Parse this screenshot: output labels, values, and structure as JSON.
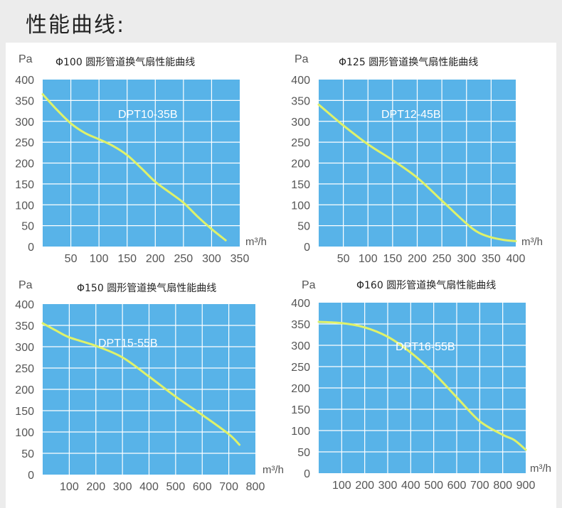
{
  "page": {
    "title": "性能曲线:"
  },
  "colors": {
    "plot_bg": "#58b3e8",
    "curve": "#dff26a",
    "grid": "#ffffff",
    "page_bg": "#ececec"
  },
  "chart_data": [
    {
      "type": "line",
      "title": "Φ100 圆形管道换气扇性能曲线",
      "ylabel": "Pa",
      "xlabel": "m³/h",
      "series_label": "DPT10-35B",
      "xlim": [
        0,
        350
      ],
      "ylim": [
        0,
        400
      ],
      "xticks": [
        "50",
        "100",
        "150",
        "200",
        "250",
        "300",
        "350"
      ],
      "yticks": [
        "400",
        "350",
        "300",
        "250",
        "200",
        "150",
        "100",
        "50",
        "0"
      ],
      "grid": true,
      "series": [
        {
          "x": [
            0,
            25,
            50,
            75,
            100,
            125,
            150,
            175,
            200,
            225,
            250,
            275,
            300,
            325
          ],
          "y": [
            365,
            328,
            295,
            272,
            257,
            241,
            219,
            188,
            155,
            130,
            105,
            72,
            42,
            15
          ]
        }
      ]
    },
    {
      "type": "line",
      "title": "Φ125 圆形管道换气扇性能曲线",
      "ylabel": "Pa",
      "xlabel": "m³/h",
      "series_label": "DPT12-45B",
      "xlim": [
        0,
        400
      ],
      "ylim": [
        0,
        400
      ],
      "xticks": [
        "50",
        "100",
        "150",
        "200",
        "250",
        "300",
        "350",
        "400"
      ],
      "yticks": [
        "400",
        "350",
        "300",
        "250",
        "200",
        "150",
        "100",
        "50",
        "0"
      ],
      "grid": true,
      "series": [
        {
          "x": [
            0,
            50,
            100,
            150,
            200,
            250,
            300,
            325,
            350,
            375,
            400
          ],
          "y": [
            340,
            290,
            245,
            207,
            165,
            110,
            55,
            33,
            22,
            16,
            13
          ]
        }
      ]
    },
    {
      "type": "line",
      "title": "Φ150 圆形管道换气扇性能曲线",
      "ylabel": "Pa",
      "xlabel": "m³/h",
      "series_label": "DPT15-55B",
      "xlim": [
        0,
        800
      ],
      "ylim": [
        0,
        400
      ],
      "xticks": [
        "100",
        "200",
        "300",
        "400",
        "500",
        "600",
        "700",
        "800"
      ],
      "yticks": [
        "400",
        "350",
        "300",
        "250",
        "200",
        "150",
        "100",
        "50",
        "0"
      ],
      "grid": true,
      "series": [
        {
          "x": [
            0,
            50,
            100,
            200,
            300,
            400,
            500,
            600,
            700,
            740
          ],
          "y": [
            355,
            338,
            322,
            302,
            275,
            230,
            183,
            140,
            95,
            70
          ]
        }
      ]
    },
    {
      "type": "line",
      "title": "Φ160 圆形管道换气扇性能曲线",
      "ylabel": "Pa",
      "xlabel": "m³/h",
      "series_label": "DPT16-55B",
      "xlim": [
        0,
        900
      ],
      "ylim": [
        0,
        400
      ],
      "xticks": [
        "100",
        "200",
        "300",
        "400",
        "500",
        "600",
        "700",
        "800",
        "900"
      ],
      "yticks": [
        "400",
        "350",
        "300",
        "250",
        "200",
        "150",
        "100",
        "50",
        "0"
      ],
      "grid": true,
      "series": [
        {
          "x": [
            0,
            100,
            200,
            300,
            400,
            500,
            600,
            700,
            800,
            850,
            900
          ],
          "y": [
            355,
            352,
            342,
            320,
            283,
            235,
            178,
            122,
            90,
            78,
            55
          ]
        }
      ]
    }
  ]
}
